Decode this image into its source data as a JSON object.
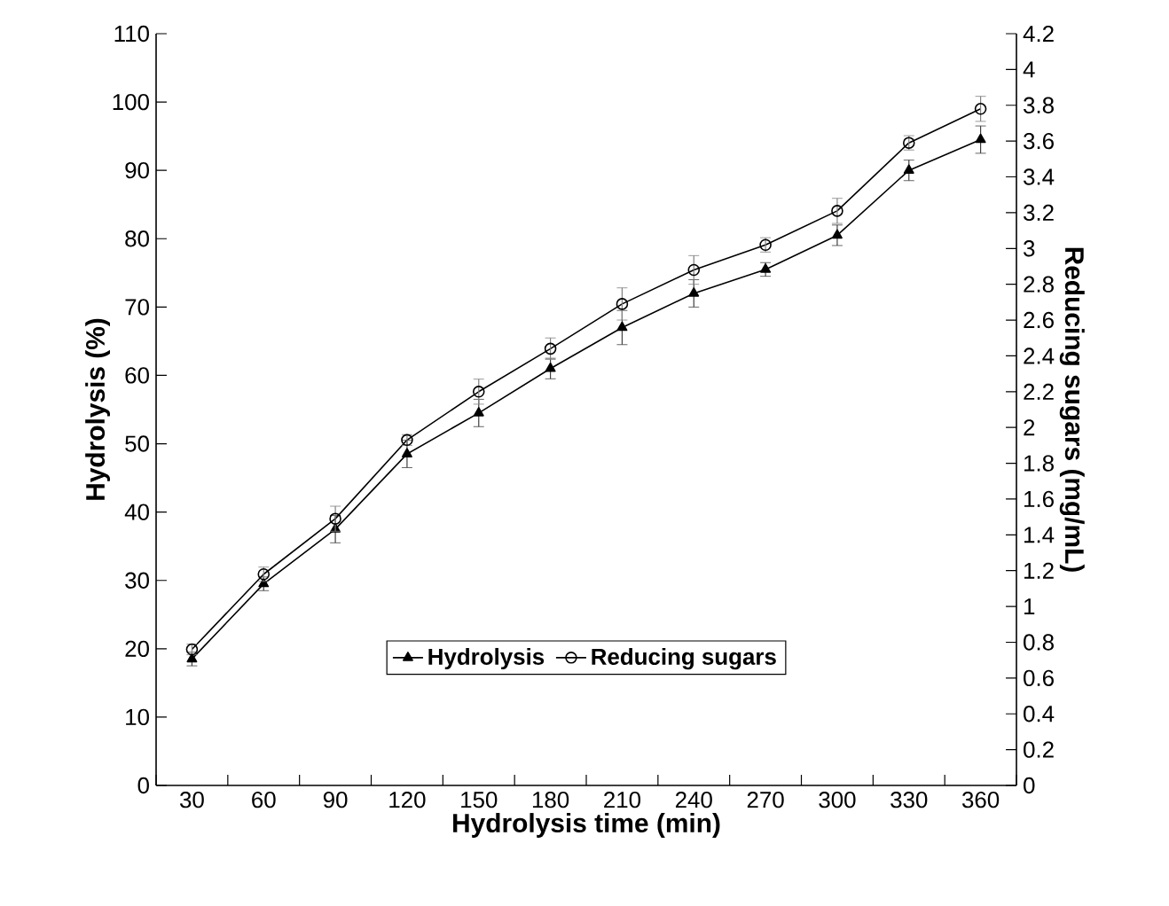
{
  "chart_data": {
    "type": "line",
    "xlabel": "Hydrolysis time (min)",
    "ylabel": "Hydrolysis (%)",
    "y2label": "Reducing sugars (mg/mL)",
    "categories": [
      "30",
      "60",
      "90",
      "120",
      "150",
      "180",
      "210",
      "240",
      "270",
      "300",
      "330",
      "360"
    ],
    "series": [
      {
        "name": "Hydrolysis",
        "color": "#000000",
        "marker": "triangle",
        "values": [
          18.5,
          29.5,
          37.5,
          48.5,
          54.5,
          61,
          67,
          72,
          75.5,
          80.5,
          90,
          94.5
        ],
        "errors": [
          1,
          1,
          2,
          2,
          2,
          1.5,
          2.5,
          2,
          1,
          1.5,
          1.5,
          2
        ]
      },
      {
        "name": "Reducing sugars",
        "color": "#000000",
        "marker": "circle",
        "axis": "y2",
        "values": [
          0.76,
          1.18,
          1.49,
          1.93,
          2.2,
          2.44,
          2.69,
          2.88,
          3.02,
          3.21,
          3.59,
          3.78
        ],
        "errors": [
          0.03,
          0.04,
          0.07,
          0.03,
          0.07,
          0.06,
          0.09,
          0.08,
          0.04,
          0.07,
          0.04,
          0.07
        ]
      }
    ],
    "ylim": [
      0,
      110
    ],
    "yticks": [
      0,
      10,
      20,
      30,
      40,
      50,
      60,
      70,
      80,
      90,
      100,
      110
    ],
    "y2lim": [
      0,
      4.2
    ],
    "y2ticks": [
      0,
      0.2,
      0.4,
      0.6,
      0.8,
      1,
      1.2,
      1.4,
      1.6,
      1.8,
      2,
      2.2,
      2.4,
      2.6,
      2.8,
      3,
      3.2,
      3.4,
      3.6,
      3.8,
      4,
      4.2
    ],
    "legend": "bottom",
    "grid": false,
    "line_style": "solid"
  }
}
